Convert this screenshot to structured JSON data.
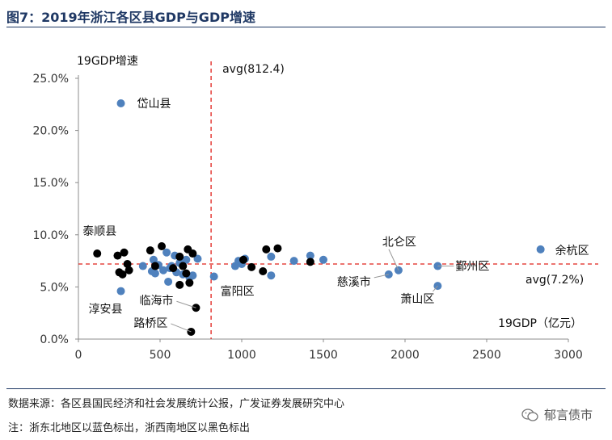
{
  "figure": {
    "title": "图7：2019年浙江各区县GDP与GDP增速",
    "source": "数据来源：各区县国民经济和社会发展统计公报，广发证券发展研究中心",
    "note": "注：浙东北地区以蓝色标出，浙西南地区以黑色标出",
    "watermark": "郁言债市"
  },
  "chart_data": {
    "type": "scatter",
    "title": "2019年浙江各区县GDP与GDP增速",
    "xlabel": "19GDP（亿元）",
    "ylabel": "19GDP增速",
    "xlim": [
      0,
      3000
    ],
    "ylim": [
      0.0,
      25.0
    ],
    "x_ticks": [
      0,
      500,
      1000,
      1500,
      2000,
      2500,
      3000
    ],
    "y_ticks": [
      0.0,
      5.0,
      10.0,
      15.0,
      20.0,
      25.0
    ],
    "y_tick_labels": [
      "0.0%",
      "5.0%",
      "10.0%",
      "15.0%",
      "20.0%",
      "25.0%"
    ],
    "colors": {
      "northeast": "#4f81bd",
      "southwest": "#000000",
      "avg_line": "#e0201b"
    },
    "reference_lines": [
      {
        "axis": "x",
        "value": 812.4,
        "label": "avg(812.4)"
      },
      {
        "axis": "y",
        "value": 7.2,
        "label": "avg(7.2%)"
      }
    ],
    "series": [
      {
        "name": "浙东北",
        "color": "#4f81bd",
        "points": [
          [
            260,
            22.6
          ],
          [
            260,
            4.6
          ],
          [
            395,
            7.0
          ],
          [
            450,
            6.5
          ],
          [
            460,
            7.6
          ],
          [
            470,
            6.3
          ],
          [
            490,
            7.1
          ],
          [
            520,
            6.6
          ],
          [
            540,
            8.3
          ],
          [
            550,
            5.5
          ],
          [
            560,
            6.8
          ],
          [
            570,
            7.0
          ],
          [
            590,
            8.0
          ],
          [
            600,
            6.4
          ],
          [
            620,
            7.3
          ],
          [
            640,
            6.2
          ],
          [
            660,
            7.6
          ],
          [
            680,
            5.9
          ],
          [
            700,
            6.1
          ],
          [
            730,
            7.7
          ],
          [
            830,
            6.0
          ],
          [
            960,
            7.0
          ],
          [
            980,
            7.5
          ],
          [
            1000,
            7.2
          ],
          [
            1020,
            7.7
          ],
          [
            1180,
            6.1
          ],
          [
            1180,
            7.9
          ],
          [
            1320,
            7.5
          ],
          [
            1420,
            8.0
          ],
          [
            1500,
            7.6
          ],
          [
            1900,
            6.2
          ],
          [
            1960,
            6.6
          ],
          [
            2200,
            5.1
          ],
          [
            2200,
            7.0
          ],
          [
            2830,
            8.6
          ]
        ]
      },
      {
        "name": "浙西南",
        "color": "#000000",
        "points": [
          [
            115,
            8.2
          ],
          [
            240,
            8.0
          ],
          [
            250,
            6.4
          ],
          [
            270,
            6.2
          ],
          [
            280,
            8.3
          ],
          [
            300,
            7.2
          ],
          [
            310,
            6.6
          ],
          [
            440,
            8.5
          ],
          [
            470,
            7.0
          ],
          [
            510,
            8.9
          ],
          [
            580,
            6.8
          ],
          [
            620,
            7.9
          ],
          [
            620,
            5.2
          ],
          [
            640,
            7.0
          ],
          [
            660,
            6.3
          ],
          [
            670,
            8.6
          ],
          [
            680,
            5.4
          ],
          [
            700,
            8.2
          ],
          [
            720,
            3.0
          ],
          [
            690,
            0.7
          ],
          [
            1010,
            7.6
          ],
          [
            1060,
            6.9
          ],
          [
            1130,
            6.5
          ],
          [
            1150,
            8.6
          ],
          [
            1220,
            8.7
          ],
          [
            1420,
            7.4
          ]
        ]
      }
    ],
    "annotations": [
      {
        "text": "岱山县",
        "x": 260,
        "y": 22.6
      },
      {
        "text": "泰顺县",
        "x": 115,
        "y": 8.2
      },
      {
        "text": "淳安县",
        "x": 260,
        "y": 4.6
      },
      {
        "text": "临海市",
        "x": 720,
        "y": 3.0
      },
      {
        "text": "路桥区",
        "x": 690,
        "y": 0.7
      },
      {
        "text": "富阳区",
        "x": 830,
        "y": 6.0
      },
      {
        "text": "北仑区",
        "x": 1960,
        "y": 6.6
      },
      {
        "text": "慈溪市",
        "x": 1900,
        "y": 6.2
      },
      {
        "text": "鄞州区",
        "x": 2200,
        "y": 7.0
      },
      {
        "text": "萧山区",
        "x": 2200,
        "y": 5.1
      },
      {
        "text": "余杭区",
        "x": 2830,
        "y": 8.6
      }
    ]
  }
}
